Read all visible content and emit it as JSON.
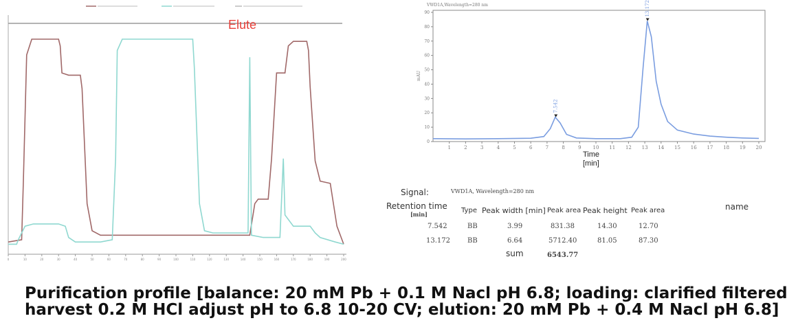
{
  "chart_data": [
    {
      "type": "line",
      "annotation": "Elute",
      "xlim": [
        0,
        200
      ],
      "ylim": [
        0,
        100
      ],
      "x_ticks": [
        "0",
        "10",
        "20",
        "30",
        "40",
        "50",
        "60",
        "70",
        "80",
        "90",
        "100",
        "110",
        "120",
        "130",
        "140",
        "150",
        "160",
        "170",
        "180",
        "190",
        "200"
      ],
      "grid": false,
      "series": [
        {
          "name": "",
          "color": "#a06868",
          "points": [
            [
              0,
              3
            ],
            [
              8,
              4
            ],
            [
              9,
              30
            ],
            [
              11,
              86
            ],
            [
              14,
              93
            ],
            [
              30,
              93
            ],
            [
              31,
              90
            ],
            [
              32,
              78
            ],
            [
              36,
              77
            ],
            [
              40,
              77
            ],
            [
              43,
              77
            ],
            [
              44,
              71
            ],
            [
              47,
              20
            ],
            [
              50,
              8
            ],
            [
              55,
              6
            ],
            [
              65,
              6
            ],
            [
              80,
              6
            ],
            [
              100,
              6
            ],
            [
              120,
              6
            ],
            [
              140,
              6
            ],
            [
              144,
              6
            ],
            [
              147,
              20
            ],
            [
              149,
              22
            ],
            [
              155,
              22
            ],
            [
              157,
              40
            ],
            [
              160,
              78
            ],
            [
              165,
              78
            ],
            [
              167,
              90
            ],
            [
              170,
              92
            ],
            [
              178,
              92
            ],
            [
              179,
              88
            ],
            [
              180,
              72
            ],
            [
              183,
              39
            ],
            [
              186,
              30
            ],
            [
              192,
              29
            ],
            [
              196,
              10
            ],
            [
              200,
              2
            ]
          ]
        },
        {
          "name": "",
          "color": "#8fd8d0",
          "points": [
            [
              0,
              2
            ],
            [
              5,
              2
            ],
            [
              6,
              4
            ],
            [
              10,
              10
            ],
            [
              15,
              11
            ],
            [
              30,
              11
            ],
            [
              34,
              10
            ],
            [
              36,
              5
            ],
            [
              40,
              3
            ],
            [
              55,
              3
            ],
            [
              62,
              4
            ],
            [
              64,
              40
            ],
            [
              65,
              88
            ],
            [
              68,
              93
            ],
            [
              100,
              93
            ],
            [
              110,
              93
            ],
            [
              111,
              80
            ],
            [
              114,
              20
            ],
            [
              117,
              8
            ],
            [
              122,
              7
            ],
            [
              140,
              7
            ],
            [
              143,
              7
            ],
            [
              144,
              85
            ],
            [
              145,
              6
            ],
            [
              152,
              5
            ],
            [
              162,
              5
            ],
            [
              164,
              40
            ],
            [
              165,
              15
            ],
            [
              170,
              10
            ],
            [
              180,
              10
            ],
            [
              183,
              7
            ],
            [
              186,
              5
            ],
            [
              195,
              3
            ],
            [
              200,
              2
            ]
          ]
        }
      ]
    },
    {
      "type": "line",
      "title": "VWD1A,Wavelength=280 nm",
      "ylabel": "mAU",
      "xlabel": "Time [min]",
      "xlim": [
        0,
        20
      ],
      "ylim": [
        0,
        90
      ],
      "x_ticks": [
        "1",
        "2",
        "3",
        "4",
        "5",
        "6",
        "7",
        "8",
        "9",
        "10",
        "11",
        "12",
        "13",
        "14",
        "15",
        "16",
        "17",
        "18",
        "19",
        "20"
      ],
      "y_ticks": [
        "0",
        "10",
        "20",
        "30",
        "40",
        "50",
        "60",
        "70",
        "80",
        "90"
      ],
      "grid": false,
      "peaks": [
        {
          "retention_time": 7.542,
          "label": "7.542",
          "height": 17
        },
        {
          "retention_time": 13.172,
          "label": "13.172",
          "height": 84
        }
      ],
      "series": [
        {
          "name": "",
          "color": "#7a9de0",
          "points": [
            [
              0,
              2
            ],
            [
              2,
              1.8
            ],
            [
              4,
              2
            ],
            [
              6,
              2.3
            ],
            [
              6.8,
              3.5
            ],
            [
              7.2,
              9
            ],
            [
              7.5,
              17
            ],
            [
              7.8,
              13
            ],
            [
              8.2,
              5
            ],
            [
              8.8,
              2.5
            ],
            [
              10,
              2
            ],
            [
              11.5,
              2
            ],
            [
              12.2,
              3
            ],
            [
              12.6,
              10
            ],
            [
              12.9,
              52
            ],
            [
              13.15,
              84
            ],
            [
              13.4,
              73
            ],
            [
              13.7,
              42
            ],
            [
              14,
              26
            ],
            [
              14.4,
              14
            ],
            [
              15,
              8
            ],
            [
              16,
              5.2
            ],
            [
              17,
              3.8
            ],
            [
              18,
              3
            ],
            [
              19,
              2.5
            ],
            [
              20,
              2.2
            ]
          ]
        }
      ]
    }
  ],
  "table": {
    "signal_label": "Signal:",
    "signal_value": "VWD1A, Wavelength=280 nm",
    "headers": {
      "retention_time": "Retention time",
      "retention_unit": "[min]",
      "type": "Type",
      "peak_width": "Peak width [min]",
      "peak_area": "Peak area",
      "peak_height": "Peak height",
      "peak_area_pct": "Peak area",
      "name": "name"
    },
    "rows": [
      {
        "rt": "7.542",
        "type": "BB",
        "width": "3.99",
        "area": "831.38",
        "height": "14.30",
        "area_pct": "12.70"
      },
      {
        "rt": "13.172",
        "type": "BB",
        "width": "6.64",
        "area": "5712.40",
        "height": "81.05",
        "area_pct": "87.30"
      }
    ],
    "sum_label": "sum",
    "sum_value": "6543.77"
  },
  "caption": "Purification profile [balance: 20 mM Pb + 0.1 M Nacl pH 6.8; loading: clarified filtered harvest 0.2 M HCl adjust pH to 6.8 10-20 CV; elution: 20 mM Pb + 0.4 M Nacl pH 6.8]",
  "colors": {
    "annotation_red": "#e8413a",
    "axis_gray": "#999999"
  }
}
